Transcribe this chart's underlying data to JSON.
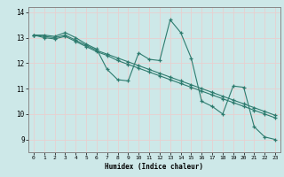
{
  "xlabel": "Humidex (Indice chaleur)",
  "ylabel": "",
  "xlim": [
    -0.5,
    23.5
  ],
  "ylim": [
    8.5,
    14.2
  ],
  "yticks": [
    9,
    10,
    11,
    12,
    13,
    14
  ],
  "xticks": [
    0,
    1,
    2,
    3,
    4,
    5,
    6,
    7,
    8,
    9,
    10,
    11,
    12,
    13,
    14,
    15,
    16,
    17,
    18,
    19,
    20,
    21,
    22,
    23
  ],
  "bg_color": "#cde8e8",
  "grid_color": "#e8d0d0",
  "line_color": "#2d7b6e",
  "series": [
    {
      "x": [
        0,
        1,
        2,
        3,
        4,
        5,
        6,
        7,
        8,
        9,
        10,
        11,
        12,
        13,
        14,
        15,
        16,
        17,
        18,
        19,
        20,
        21,
        22,
        23
      ],
      "y": [
        13.1,
        13.1,
        13.05,
        13.2,
        13.0,
        12.75,
        12.55,
        11.75,
        11.35,
        11.3,
        12.4,
        12.15,
        12.1,
        13.7,
        13.2,
        12.2,
        10.5,
        10.3,
        10.0,
        11.1,
        11.05,
        9.5,
        9.1,
        9.0
      ]
    },
    {
      "x": [
        0,
        1,
        2,
        3,
        4,
        5,
        6,
        7,
        8,
        9,
        10,
        11,
        12,
        13,
        14,
        15,
        16,
        17,
        18,
        19,
        20,
        21,
        22,
        23
      ],
      "y": [
        13.1,
        13.05,
        13.0,
        13.1,
        12.9,
        12.7,
        12.5,
        12.35,
        12.2,
        12.05,
        11.9,
        11.75,
        11.6,
        11.45,
        11.3,
        11.15,
        11.0,
        10.85,
        10.7,
        10.55,
        10.4,
        10.25,
        10.1,
        9.95
      ]
    },
    {
      "x": [
        0,
        1,
        2,
        3,
        4,
        5,
        6,
        7,
        8,
        9,
        10,
        11,
        12,
        13,
        14,
        15,
        16,
        17,
        18,
        19,
        20,
        21,
        22,
        23
      ],
      "y": [
        13.1,
        13.0,
        12.95,
        13.05,
        12.85,
        12.65,
        12.45,
        12.3,
        12.1,
        11.95,
        11.8,
        11.65,
        11.5,
        11.35,
        11.2,
        11.05,
        10.9,
        10.75,
        10.6,
        10.45,
        10.3,
        10.15,
        10.0,
        9.85
      ]
    }
  ]
}
